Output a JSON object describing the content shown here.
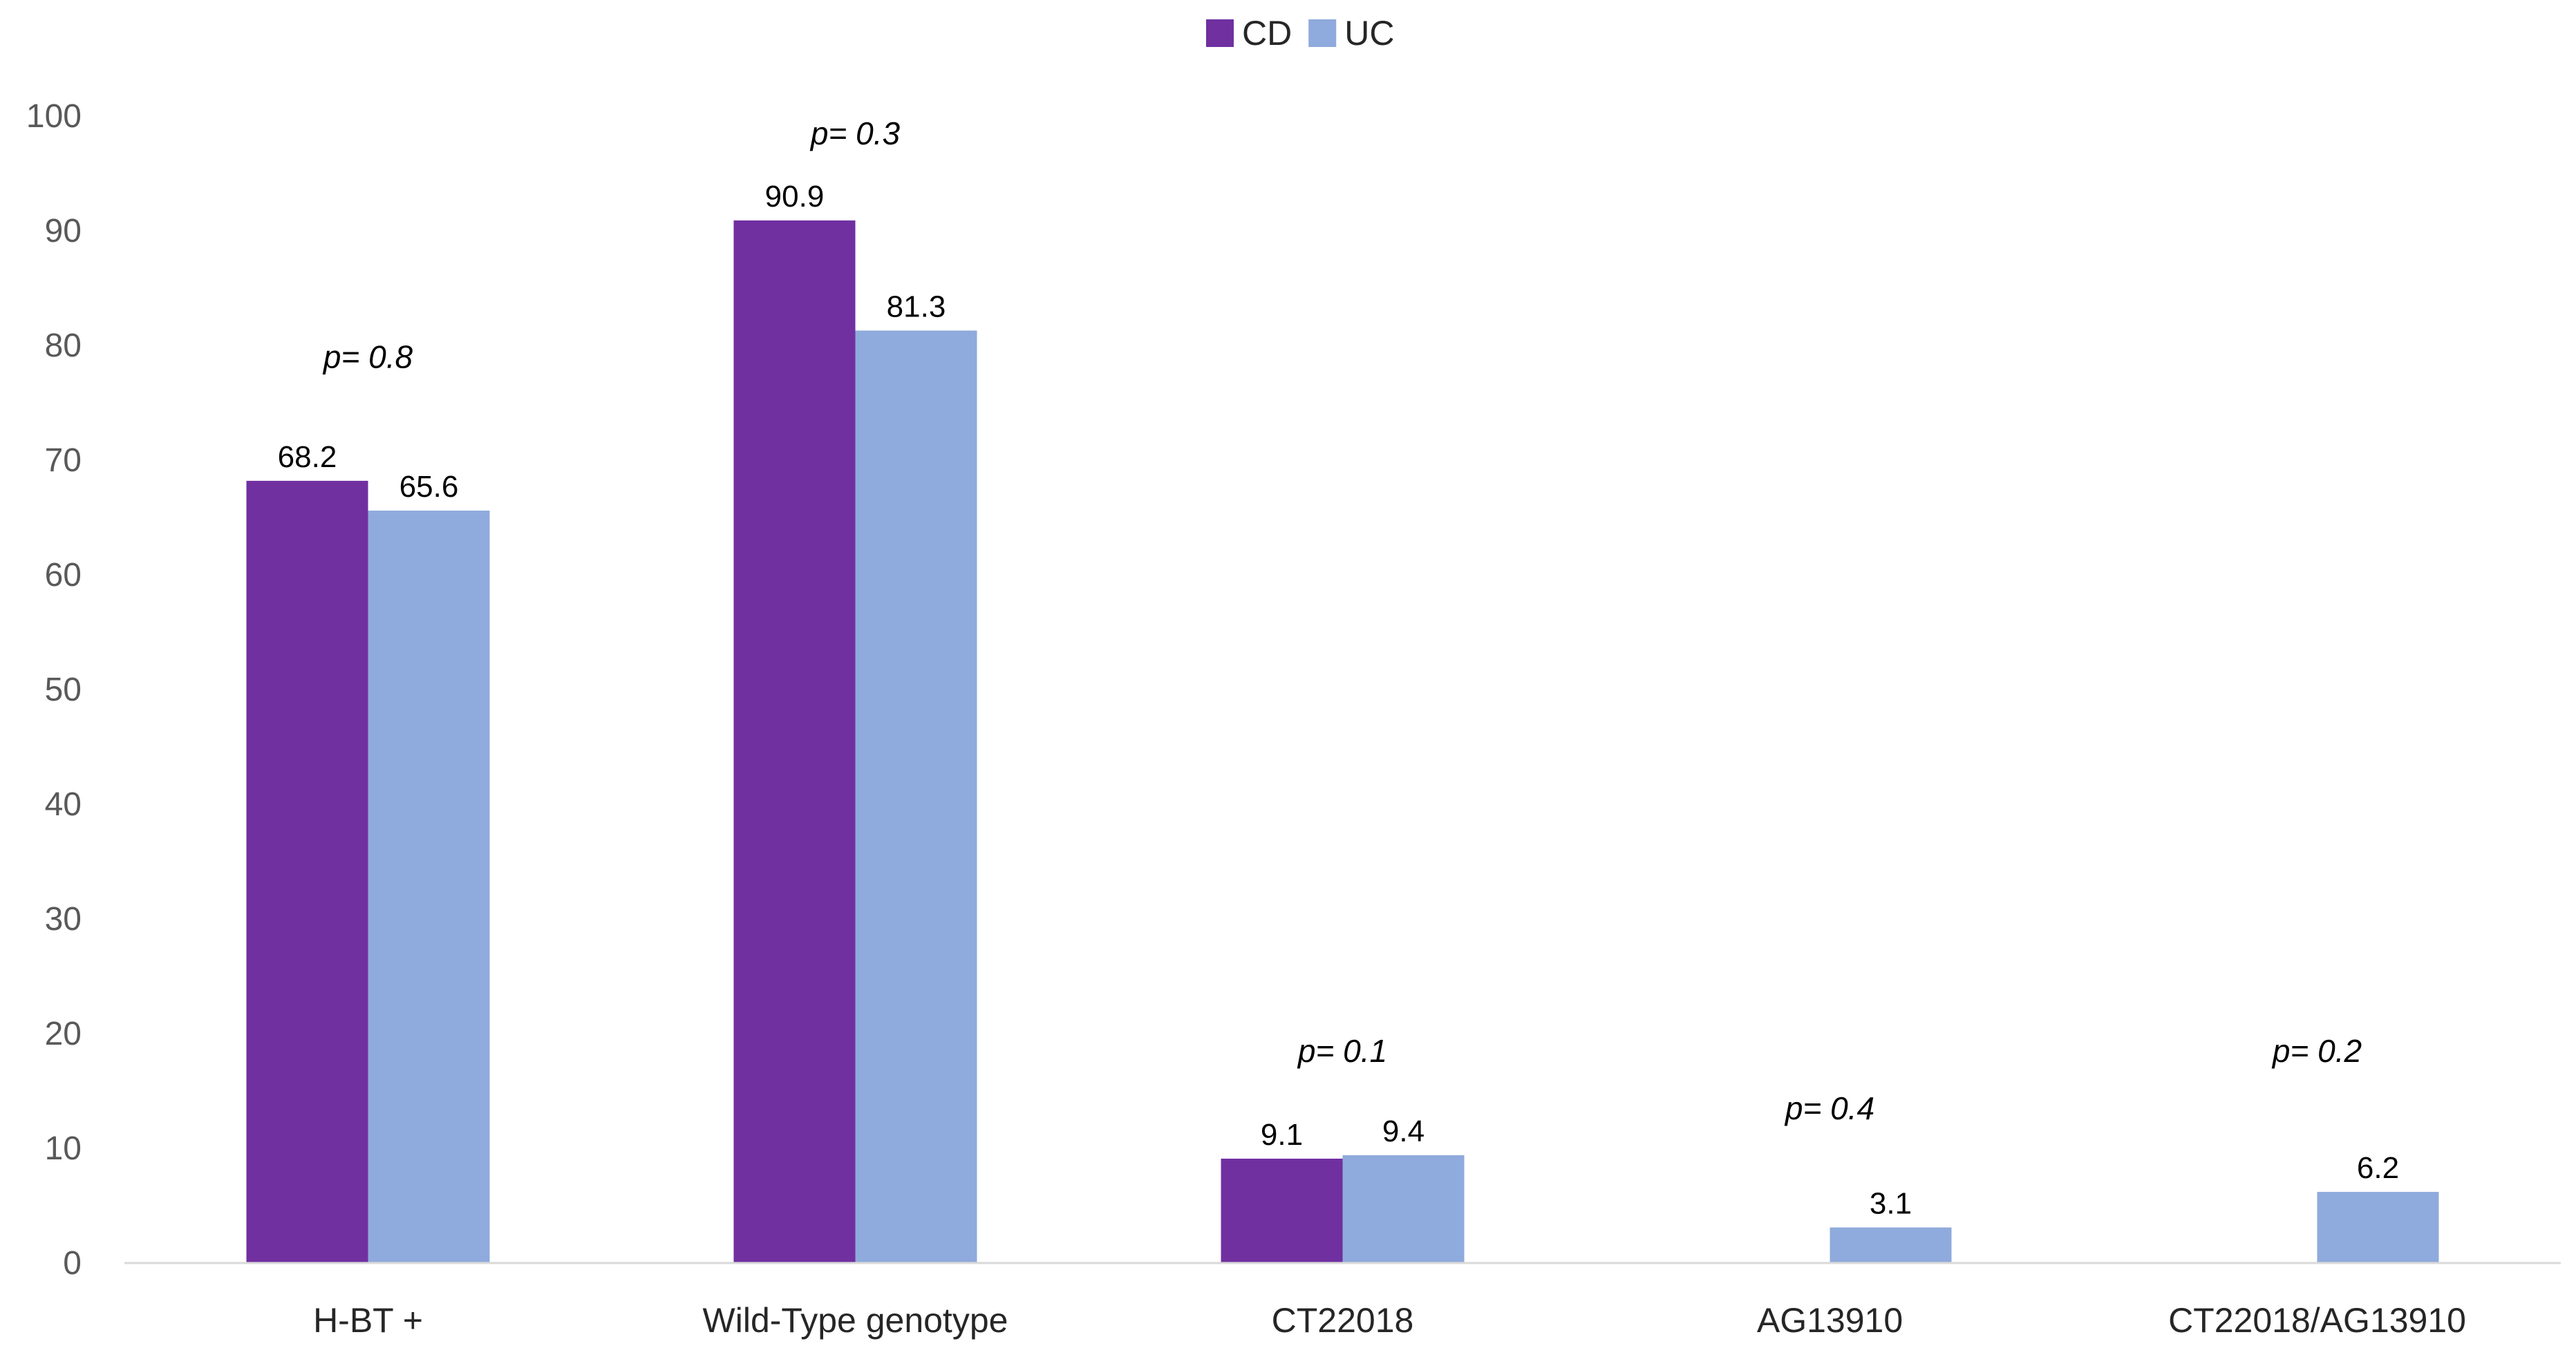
{
  "chart_data": {
    "type": "bar",
    "title": "",
    "xlabel": "",
    "ylabel": "",
    "ylim": [
      0,
      100
    ],
    "yticks": [
      0,
      10,
      20,
      30,
      40,
      50,
      60,
      70,
      80,
      90,
      100
    ],
    "grid": false,
    "legend_position": "top-center",
    "categories": [
      "H-BT +",
      "Wild-Type genotype",
      "CT22018",
      "AG13910",
      "CT22018/AG13910"
    ],
    "series": [
      {
        "name": "CD",
        "color": "#7030A0",
        "values": [
          68.2,
          90.9,
          9.1,
          null,
          null
        ],
        "labels": [
          "68.2",
          "90.9",
          "9.1",
          "",
          ""
        ]
      },
      {
        "name": "UC",
        "color": "#8FAADC",
        "values": [
          65.6,
          81.3,
          9.4,
          3.1,
          6.2
        ],
        "labels": [
          "65.6",
          "81.3",
          "9.4",
          "3.1",
          "6.2"
        ]
      }
    ],
    "annotations": [
      {
        "category": "H-BT +",
        "text": "p= 0.8",
        "y": 79
      },
      {
        "category": "Wild-Type genotype",
        "text": "p= 0.3",
        "y": 98.5
      },
      {
        "category": "CT22018",
        "text": "p= 0.1",
        "y": 18.5
      },
      {
        "category": "AG13910",
        "text": "p= 0.4",
        "y": 13.5
      },
      {
        "category": "CT22018/AG13910",
        "text": "p= 0.2",
        "y": 18.5
      }
    ]
  }
}
